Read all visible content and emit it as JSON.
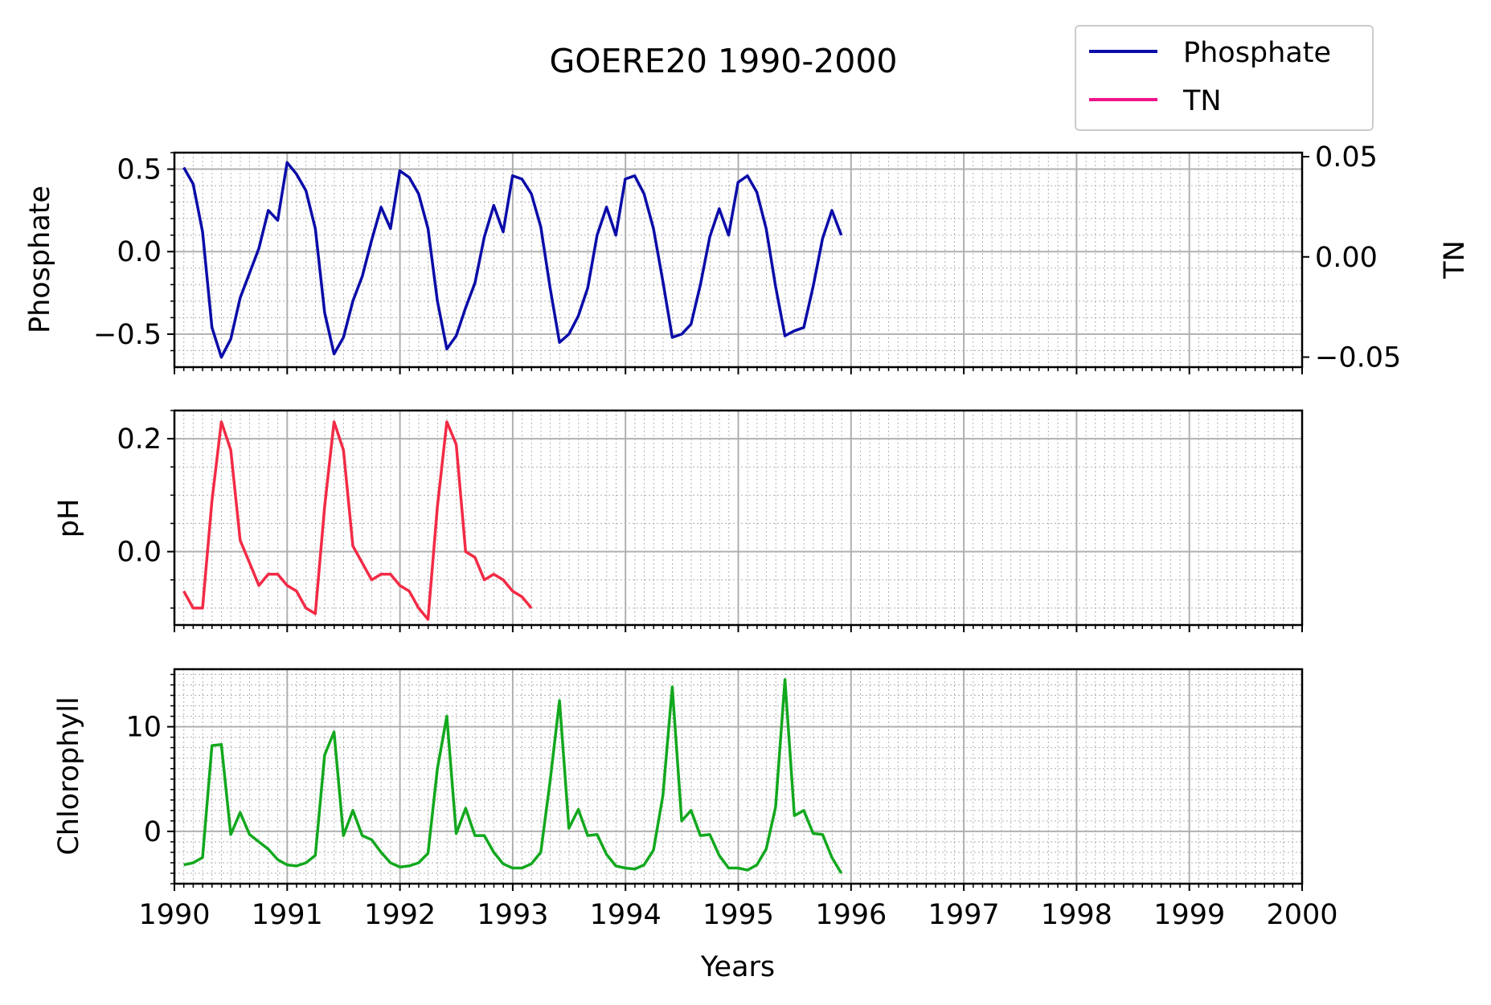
{
  "chart_data": {
    "type": "line",
    "title": "GOERE20 1990-2000",
    "xlabel": "Years",
    "xlim": [
      1990,
      2000
    ],
    "x_ticks": [
      "1990",
      "1991",
      "1992",
      "1993",
      "1994",
      "1995",
      "1996",
      "1997",
      "1998",
      "1999",
      "2000"
    ],
    "x_minor_step": 0.0833,
    "grid": true,
    "legend": {
      "placement": "top-right",
      "entries": [
        {
          "name": "Phosphate",
          "color": "#0b0ca8"
        },
        {
          "name": "TN",
          "color": "#f0128b"
        }
      ]
    },
    "subplots": [
      {
        "ylabel": "Phosphate",
        "ylim": [
          -0.7,
          0.6
        ],
        "y_ticks": [
          0.5,
          0.0,
          -0.5
        ],
        "y_tick_labels": [
          "0.5",
          "0.0",
          "−0.5"
        ],
        "y_minor_step": 0.1,
        "secondary_axis": {
          "ylabel": "TN",
          "ylim": [
            -0.055,
            0.052
          ],
          "y_ticks": [
            0.05,
            0.0,
            -0.05
          ],
          "y_tick_labels": [
            "0.05",
            "0.00",
            "−0.05"
          ]
        },
        "series": [
          {
            "name": "Phosphate",
            "color": "#0b0ca8",
            "x_start": 1990.083,
            "x_step": 0.0833,
            "values": [
              0.51,
              0.41,
              0.12,
              -0.46,
              -0.64,
              -0.53,
              -0.28,
              -0.13,
              0.02,
              0.25,
              0.19,
              0.54,
              0.47,
              0.37,
              0.14,
              -0.37,
              -0.62,
              -0.52,
              -0.3,
              -0.15,
              0.07,
              0.27,
              0.14,
              0.49,
              0.45,
              0.35,
              0.14,
              -0.3,
              -0.59,
              -0.51,
              -0.34,
              -0.19,
              0.09,
              0.28,
              0.12,
              0.46,
              0.44,
              0.35,
              0.15,
              -0.22,
              -0.55,
              -0.5,
              -0.39,
              -0.22,
              0.1,
              0.27,
              0.1,
              0.44,
              0.46,
              0.35,
              0.14,
              -0.18,
              -0.52,
              -0.5,
              -0.44,
              -0.2,
              0.09,
              0.26,
              0.1,
              0.42,
              0.46,
              0.36,
              0.14,
              -0.21,
              -0.51,
              -0.48,
              -0.46,
              -0.21,
              0.08,
              0.25,
              0.1
            ]
          }
        ]
      },
      {
        "ylabel": "pH",
        "ylim": [
          -0.13,
          0.25
        ],
        "y_ticks": [
          0.2,
          0.0
        ],
        "y_tick_labels": [
          "0.2",
          "0.0"
        ],
        "y_minor_step": 0.05,
        "series": [
          {
            "name": "pH",
            "color": "#f22b46",
            "x_start": 1990.083,
            "x_step": 0.0833,
            "values": [
              -0.07,
              -0.1,
              -0.1,
              0.09,
              0.23,
              0.18,
              0.02,
              -0.02,
              -0.06,
              -0.04,
              -0.04,
              -0.06,
              -0.07,
              -0.1,
              -0.11,
              0.08,
              0.23,
              0.18,
              0.01,
              -0.02,
              -0.05,
              -0.04,
              -0.04,
              -0.06,
              -0.07,
              -0.1,
              -0.12,
              0.08,
              0.23,
              0.19,
              0.0,
              -0.01,
              -0.05,
              -0.04,
              -0.05,
              -0.07,
              -0.08,
              -0.1
            ]
          }
        ]
      },
      {
        "ylabel": "Chlorophyll",
        "ylim": [
          -5,
          15.5
        ],
        "y_ticks": [
          10,
          0
        ],
        "y_tick_labels": [
          "10",
          "0"
        ],
        "y_minor_step": 1,
        "series": [
          {
            "name": "Chlorophyll",
            "color": "#12a81e",
            "x_start": 1990.083,
            "x_step": 0.0833,
            "values": [
              -3.2,
              -3.0,
              -2.5,
              8.2,
              8.3,
              -0.3,
              1.8,
              -0.3,
              -1.0,
              -1.7,
              -2.7,
              -3.2,
              -3.3,
              -3.0,
              -2.3,
              7.3,
              9.5,
              -0.4,
              2.0,
              -0.4,
              -0.8,
              -2.0,
              -3.0,
              -3.4,
              -3.3,
              -3.0,
              -2.1,
              6.0,
              11.0,
              -0.2,
              2.2,
              -0.4,
              -0.4,
              -2.0,
              -3.1,
              -3.5,
              -3.5,
              -3.1,
              -2.0,
              4.8,
              12.5,
              0.3,
              2.1,
              -0.4,
              -0.3,
              -2.2,
              -3.3,
              -3.5,
              -3.6,
              -3.2,
              -1.8,
              3.4,
              13.8,
              1.0,
              2.0,
              -0.4,
              -0.3,
              -2.3,
              -3.5,
              -3.5,
              -3.7,
              -3.2,
              -1.7,
              2.3,
              14.5,
              1.5,
              2.0,
              -0.2,
              -0.3,
              -2.5,
              -4.0
            ]
          }
        ]
      }
    ]
  }
}
